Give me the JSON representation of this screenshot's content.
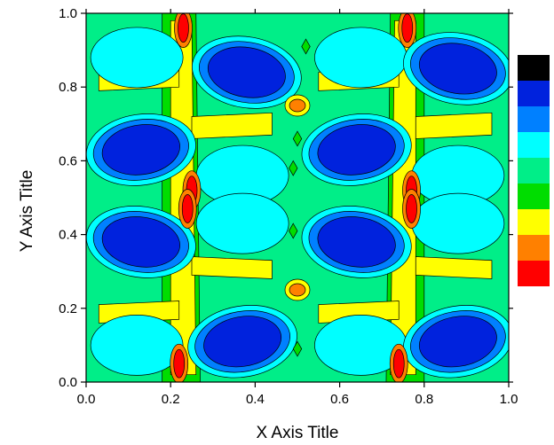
{
  "chart_data": {
    "type": "contour",
    "title": "",
    "xlabel": "X Axis Title",
    "ylabel": "Y Axis Title",
    "xlim": [
      0.0,
      1.0
    ],
    "ylim": [
      0.0,
      1.0
    ],
    "x_ticks": [
      "0.0",
      "0.2",
      "0.4",
      "0.6",
      "0.8",
      "1.0"
    ],
    "y_ticks": [
      "0.0",
      "0.2",
      "0.4",
      "0.6",
      "0.8",
      "1.0"
    ],
    "grid": false,
    "legend": "right, color bar with no numeric labels",
    "level_colors": [
      "#ff0000",
      "#ff8000",
      "#ffff00",
      "#00dd00",
      "#00ee88",
      "#00ffff",
      "#0080ff",
      "#0022dd",
      "#000000"
    ],
    "background_level_color": "#00ee88",
    "features": [
      {
        "kind": "blue-minimum",
        "x": 0.13,
        "y": 0.63
      },
      {
        "kind": "blue-minimum",
        "x": 0.13,
        "y": 0.38
      },
      {
        "kind": "blue-minimum",
        "x": 0.38,
        "y": 0.84
      },
      {
        "kind": "blue-minimum",
        "x": 0.37,
        "y": 0.11
      },
      {
        "kind": "blue-minimum",
        "x": 0.64,
        "y": 0.63
      },
      {
        "kind": "blue-minimum",
        "x": 0.64,
        "y": 0.38
      },
      {
        "kind": "blue-minimum",
        "x": 0.88,
        "y": 0.85
      },
      {
        "kind": "blue-minimum",
        "x": 0.88,
        "y": 0.11
      },
      {
        "kind": "red-maximum",
        "x": 0.23,
        "y": 0.96
      },
      {
        "kind": "red-maximum",
        "x": 0.25,
        "y": 0.5
      },
      {
        "kind": "red-maximum",
        "x": 0.22,
        "y": 0.05
      },
      {
        "kind": "red-maximum",
        "x": 0.76,
        "y": 0.96
      },
      {
        "kind": "red-maximum",
        "x": 0.77,
        "y": 0.5
      },
      {
        "kind": "red-maximum",
        "x": 0.74,
        "y": 0.05
      },
      {
        "kind": "orange-maximum",
        "x": 0.5,
        "y": 0.75
      },
      {
        "kind": "orange-maximum",
        "x": 0.5,
        "y": 0.25
      }
    ]
  }
}
